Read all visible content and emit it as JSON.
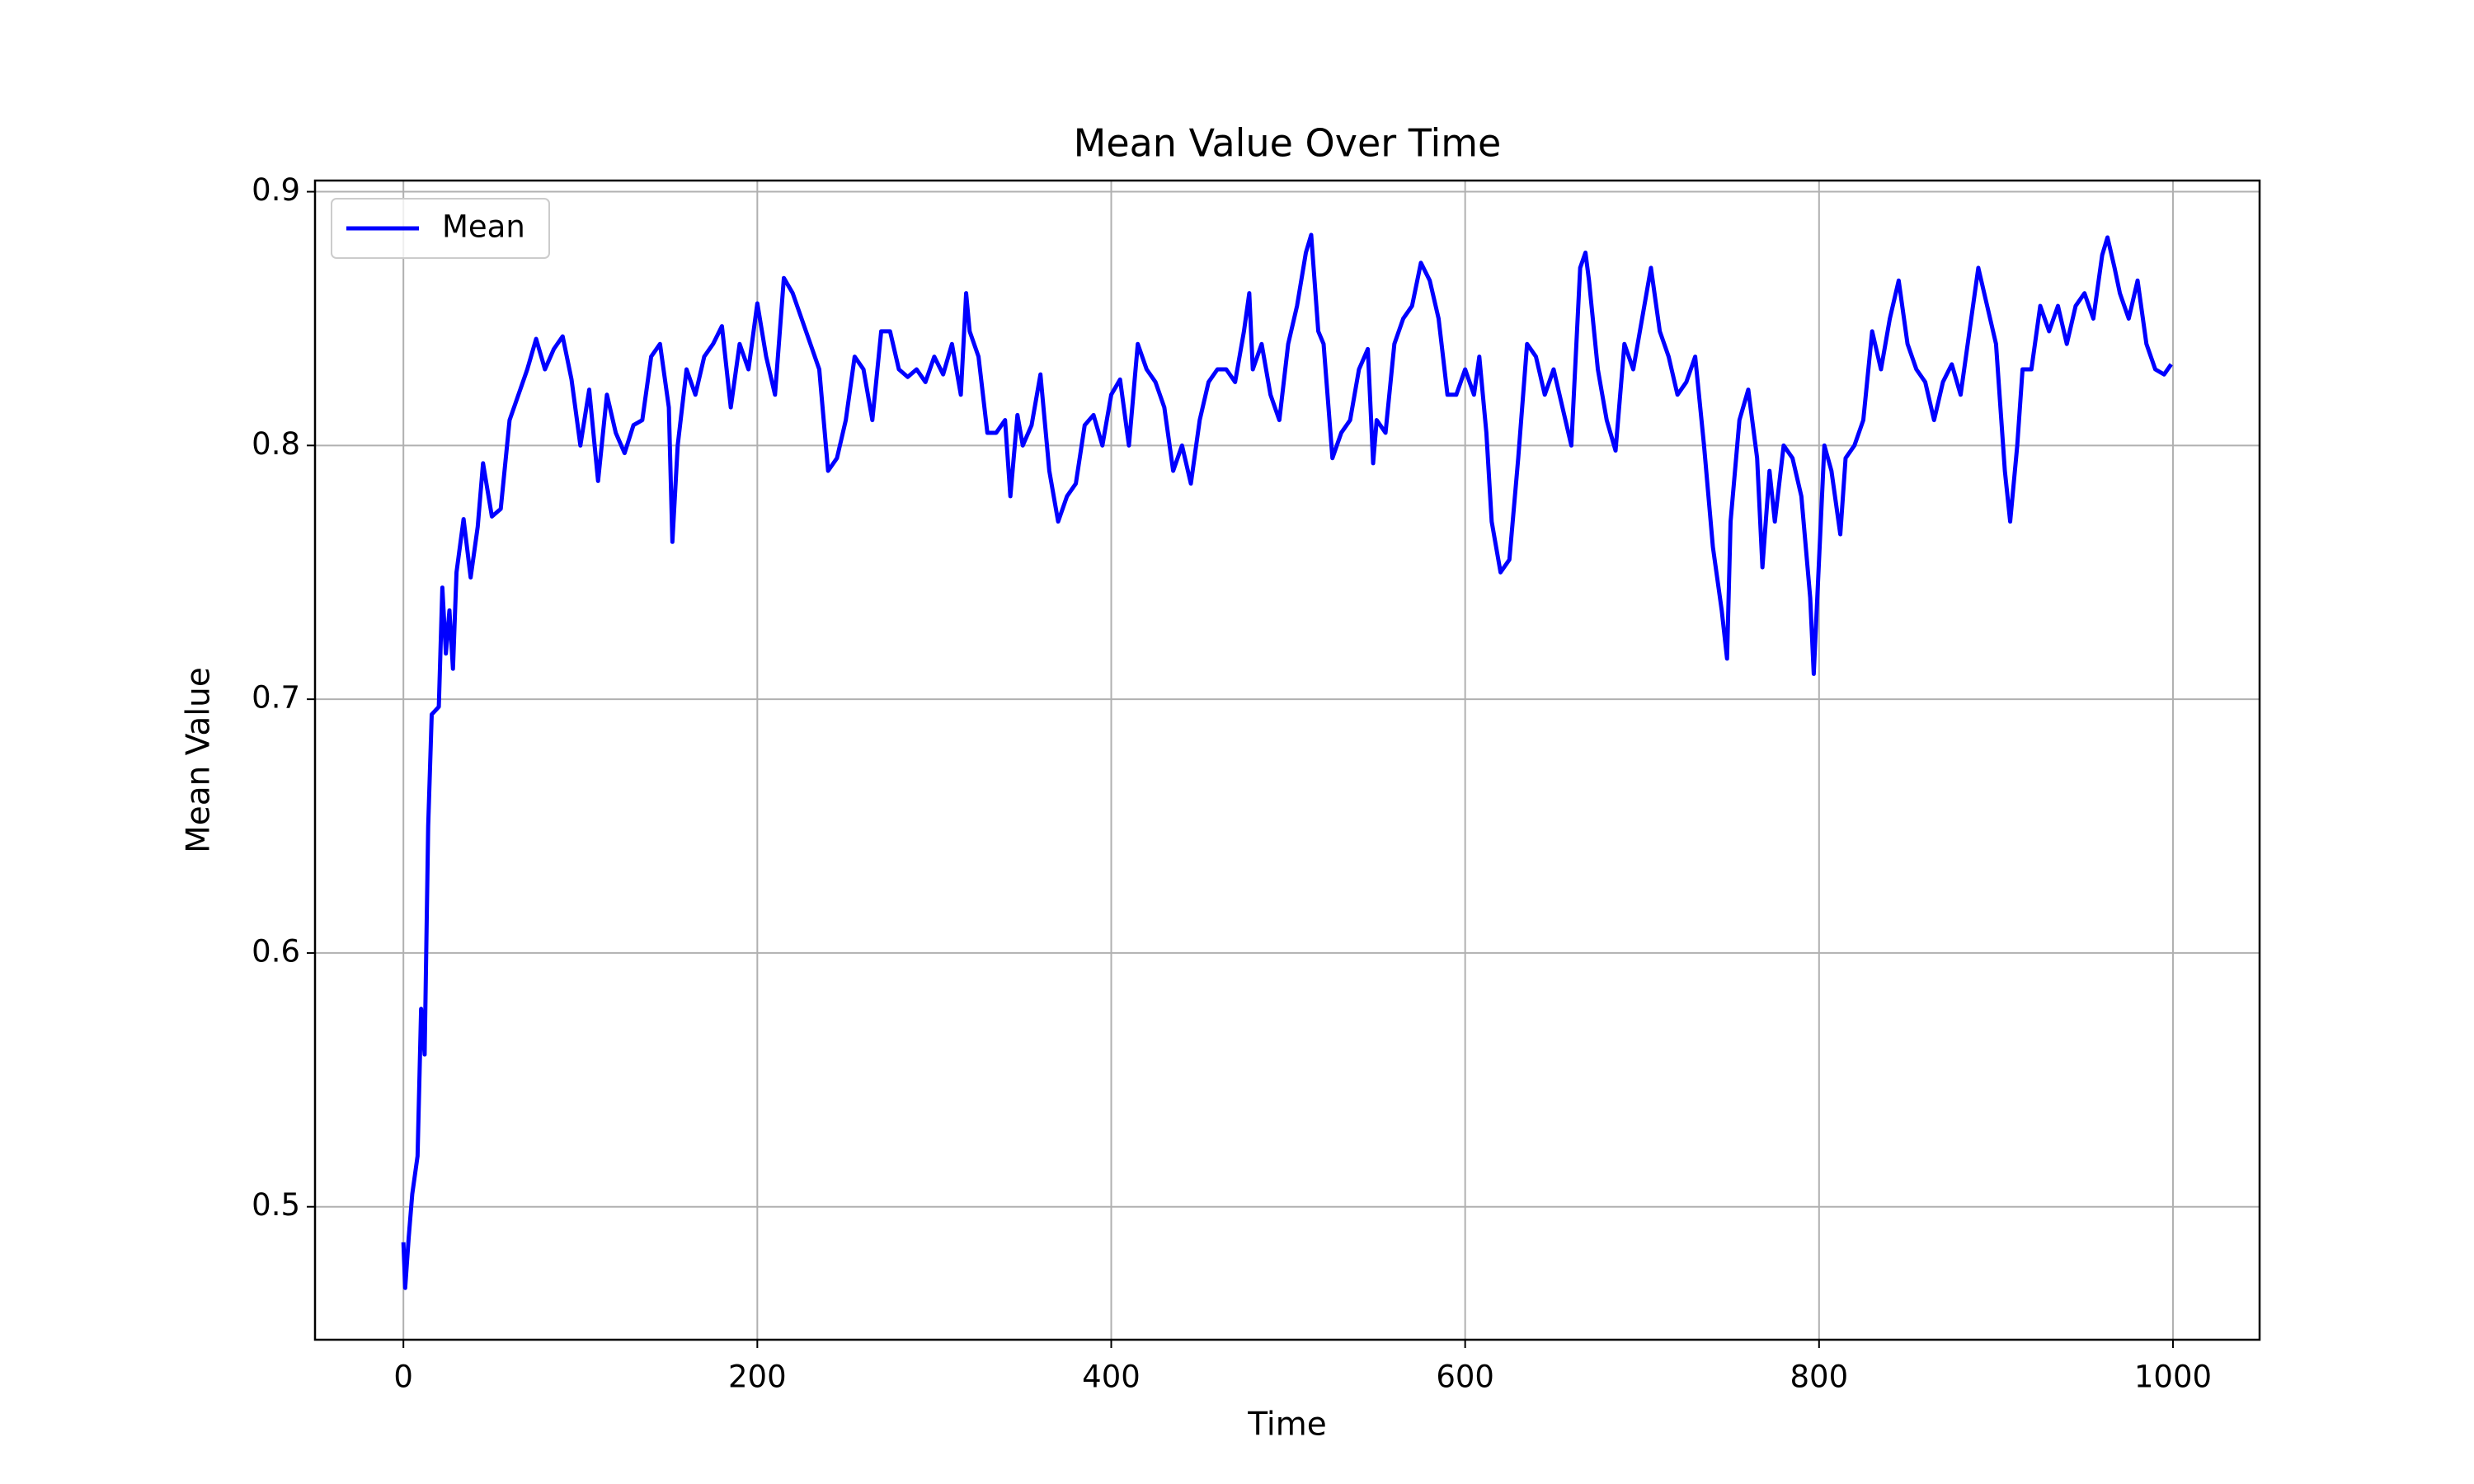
{
  "chart_data": {
    "type": "line",
    "title": "Mean Value Over Time",
    "x_label": "Time",
    "y_label": "Mean Value",
    "x": [
      0,
      1,
      3,
      5,
      8,
      10,
      12,
      14,
      16,
      20,
      22,
      24,
      26,
      28,
      30,
      34,
      38,
      42,
      45,
      50,
      55,
      60,
      65,
      70,
      75,
      80,
      85,
      90,
      95,
      100,
      105,
      110,
      115,
      120,
      125,
      130,
      135,
      140,
      145,
      150,
      152,
      155,
      160,
      165,
      170,
      175,
      180,
      185,
      190,
      195,
      200,
      205,
      210,
      215,
      220,
      225,
      230,
      235,
      240,
      245,
      250,
      255,
      260,
      265,
      270,
      275,
      280,
      285,
      290,
      295,
      300,
      305,
      310,
      315,
      318,
      320,
      325,
      330,
      335,
      340,
      343,
      347,
      350,
      355,
      360,
      365,
      370,
      375,
      380,
      385,
      390,
      395,
      400,
      405,
      410,
      415,
      420,
      425,
      430,
      435,
      440,
      445,
      450,
      455,
      460,
      465,
      470,
      475,
      478,
      480,
      485,
      490,
      495,
      500,
      505,
      510,
      513,
      517,
      520,
      525,
      530,
      535,
      540,
      545,
      548,
      550,
      555,
      560,
      565,
      570,
      575,
      580,
      585,
      590,
      595,
      600,
      605,
      608,
      612,
      615,
      620,
      625,
      630,
      635,
      640,
      645,
      650,
      655,
      660,
      665,
      668,
      670,
      675,
      680,
      685,
      690,
      695,
      700,
      705,
      710,
      715,
      720,
      725,
      730,
      735,
      740,
      745,
      748,
      750,
      755,
      760,
      765,
      768,
      772,
      775,
      780,
      785,
      790,
      795,
      797,
      800,
      803,
      807,
      812,
      815,
      820,
      825,
      830,
      835,
      840,
      845,
      850,
      855,
      860,
      865,
      870,
      875,
      880,
      885,
      890,
      895,
      900,
      905,
      908,
      912,
      915,
      920,
      925,
      930,
      935,
      940,
      945,
      950,
      955,
      960,
      963,
      967,
      970,
      975,
      980,
      985,
      990,
      995,
      999
    ],
    "series": [
      {
        "name": "Mean",
        "color": "#0000ff",
        "values": [
          0.486,
          0.468,
          0.488,
          0.505,
          0.52,
          0.578,
          0.56,
          0.65,
          0.694,
          0.697,
          0.744,
          0.718,
          0.735,
          0.712,
          0.75,
          0.771,
          0.748,
          0.768,
          0.793,
          0.772,
          0.775,
          0.81,
          0.82,
          0.83,
          0.842,
          0.83,
          0.838,
          0.843,
          0.826,
          0.8,
          0.822,
          0.786,
          0.82,
          0.805,
          0.797,
          0.808,
          0.81,
          0.835,
          0.84,
          0.815,
          0.762,
          0.8,
          0.83,
          0.82,
          0.835,
          0.84,
          0.847,
          0.815,
          0.84,
          0.83,
          0.856,
          0.835,
          0.82,
          0.866,
          0.86,
          0.85,
          0.84,
          0.83,
          0.79,
          0.795,
          0.81,
          0.835,
          0.83,
          0.81,
          0.845,
          0.845,
          0.83,
          0.827,
          0.83,
          0.825,
          0.835,
          0.828,
          0.84,
          0.82,
          0.86,
          0.845,
          0.835,
          0.805,
          0.805,
          0.81,
          0.78,
          0.812,
          0.8,
          0.808,
          0.828,
          0.79,
          0.77,
          0.78,
          0.785,
          0.808,
          0.812,
          0.8,
          0.82,
          0.826,
          0.8,
          0.84,
          0.83,
          0.825,
          0.815,
          0.79,
          0.8,
          0.785,
          0.81,
          0.825,
          0.83,
          0.83,
          0.825,
          0.845,
          0.86,
          0.83,
          0.84,
          0.82,
          0.81,
          0.84,
          0.855,
          0.876,
          0.883,
          0.845,
          0.84,
          0.795,
          0.805,
          0.81,
          0.83,
          0.838,
          0.793,
          0.81,
          0.805,
          0.84,
          0.85,
          0.855,
          0.872,
          0.865,
          0.85,
          0.82,
          0.82,
          0.83,
          0.82,
          0.835,
          0.805,
          0.77,
          0.75,
          0.755,
          0.795,
          0.84,
          0.835,
          0.82,
          0.83,
          0.815,
          0.8,
          0.87,
          0.876,
          0.865,
          0.83,
          0.81,
          0.798,
          0.84,
          0.83,
          0.85,
          0.87,
          0.845,
          0.835,
          0.82,
          0.825,
          0.835,
          0.8,
          0.76,
          0.735,
          0.716,
          0.77,
          0.81,
          0.822,
          0.795,
          0.752,
          0.79,
          0.77,
          0.8,
          0.795,
          0.78,
          0.74,
          0.71,
          0.755,
          0.8,
          0.79,
          0.765,
          0.795,
          0.8,
          0.81,
          0.845,
          0.83,
          0.85,
          0.865,
          0.84,
          0.83,
          0.825,
          0.81,
          0.825,
          0.832,
          0.82,
          0.845,
          0.87,
          0.855,
          0.84,
          0.79,
          0.77,
          0.8,
          0.83,
          0.83,
          0.855,
          0.845,
          0.855,
          0.84,
          0.855,
          0.86,
          0.85,
          0.875,
          0.882,
          0.87,
          0.86,
          0.85,
          0.865,
          0.84,
          0.83,
          0.828,
          0.832
        ]
      }
    ],
    "xlim": [
      -49.95,
      1048.95
    ],
    "ylim": [
      0.4476,
      0.9044
    ],
    "xticks": [
      0,
      200,
      400,
      600,
      800,
      1000
    ],
    "yticks": [
      0.5,
      0.6,
      0.7,
      0.8,
      0.9
    ],
    "grid": true,
    "legend": "upper left"
  }
}
